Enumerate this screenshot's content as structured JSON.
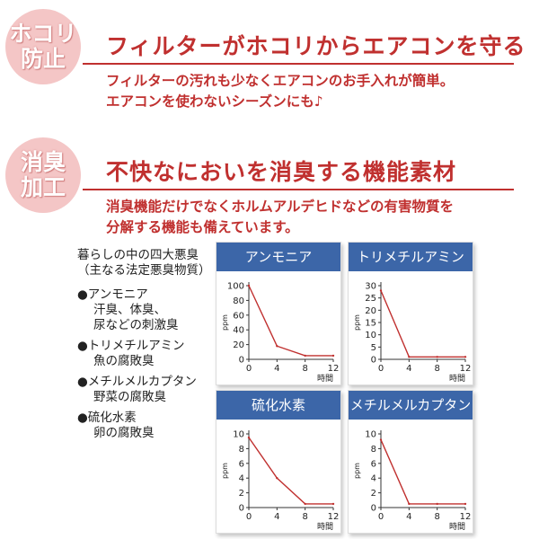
{
  "section1": {
    "badge_line1": "ホコリ",
    "badge_line2": "防止",
    "headline": "フィルターがホコリからエアコンを守る",
    "text_line1": "フィルターの汚れも少なくエアコンのお手入れが簡単。",
    "text_line2": "エアコンを使わないシーズンにも♪"
  },
  "section2": {
    "badge_line1": "消臭",
    "badge_line2": "加工",
    "headline": "不快なにおいを消臭する機能素材",
    "text_line1": "消臭機能だけでなくホルムアルデヒドなどの有害物質を",
    "text_line2": "分解する機能も備えています。"
  },
  "left_panel": {
    "heading_line1": "暮らしの中の四大悪臭",
    "heading_line2": "（主なる法定悪臭物質）",
    "items": [
      {
        "name": "●アンモニア",
        "desc1": "汗臭、体臭、",
        "desc2": "尿などの刺激臭"
      },
      {
        "name": "●トリメチルアミン",
        "desc1": "魚の腐敗臭",
        "desc2": ""
      },
      {
        "name": "●メチルメルカプタン",
        "desc1": "野菜の腐敗臭",
        "desc2": ""
      },
      {
        "name": "●硫化水素",
        "desc1": "卵の腐敗臭",
        "desc2": ""
      }
    ]
  },
  "colors": {
    "accent": "#c0302f",
    "panel_header": "#3c66a8",
    "badge": "#f4c6c6",
    "line": "#c0302f"
  },
  "chart_data": [
    {
      "type": "line",
      "title": "アンモニア",
      "ylabel": "ppm",
      "xlabel": "時間",
      "x": [
        0,
        4,
        8,
        12
      ],
      "y": [
        100,
        18,
        5,
        5
      ],
      "xticks": [
        "0",
        "4",
        "8",
        "12"
      ],
      "yticks": [
        "0",
        "20",
        "40",
        "60",
        "80",
        "100"
      ],
      "xlim": [
        0,
        12
      ],
      "ylim": [
        0,
        100
      ]
    },
    {
      "type": "line",
      "title": "トリメチルアミン",
      "ylabel": "ppm",
      "xlabel": "時間",
      "x": [
        0,
        4,
        8,
        12
      ],
      "y": [
        28,
        1,
        1,
        1
      ],
      "xticks": [
        "0",
        "4",
        "8",
        "12"
      ],
      "yticks": [
        "0",
        "5",
        "10",
        "15",
        "20",
        "25",
        "30"
      ],
      "xlim": [
        0,
        12
      ],
      "ylim": [
        0,
        30
      ]
    },
    {
      "type": "line",
      "title": "硫化水素",
      "ylabel": "ppm",
      "xlabel": "時間",
      "x": [
        0,
        4,
        8,
        12
      ],
      "y": [
        9.5,
        4,
        0.5,
        0.5
      ],
      "xticks": [
        "0",
        "4",
        "8",
        "12"
      ],
      "yticks": [
        "0",
        "2",
        "4",
        "6",
        "8",
        "10"
      ],
      "xlim": [
        0,
        12
      ],
      "ylim": [
        0,
        10
      ]
    },
    {
      "type": "line",
      "title": "メチルメルカプタン",
      "ylabel": "ppm",
      "xlabel": "時間",
      "x": [
        0,
        4,
        8,
        12
      ],
      "y": [
        9.2,
        0.5,
        0.5,
        0.5
      ],
      "xticks": [
        "0",
        "4",
        "8",
        "12"
      ],
      "yticks": [
        "0",
        "2",
        "4",
        "6",
        "8",
        "10"
      ],
      "xlim": [
        0,
        12
      ],
      "ylim": [
        0,
        10
      ]
    }
  ]
}
